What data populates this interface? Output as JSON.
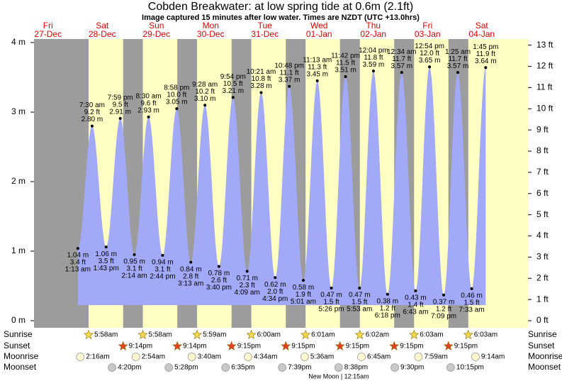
{
  "chart_data": {
    "type": "tide",
    "title": "Cobden Breakwater: at low  spring tide at 0.6m (2.1ft)",
    "subtitle": "Image captured 15 minutes after low water. Times are NZDT (UTC +13.0hrs)",
    "ylim": [
      0,
      4
    ],
    "yticks": [
      {
        "value": 0,
        "label": "0 m"
      },
      {
        "value": 1,
        "label": "1 m"
      },
      {
        "value": 2,
        "label": "2 m"
      },
      {
        "value": 3,
        "label": "3 m"
      },
      {
        "value": 4,
        "label": "4 m"
      }
    ],
    "y2lim": [
      0,
      13.123
    ],
    "y2ticks": [
      {
        "value": 0,
        "label": "0 ft"
      },
      {
        "value": 1,
        "label": "1 ft"
      },
      {
        "value": 2,
        "label": "2 ft"
      },
      {
        "value": 3,
        "label": "3 ft"
      },
      {
        "value": 4,
        "label": "4 ft"
      },
      {
        "value": 5,
        "label": "5 ft"
      },
      {
        "value": 6,
        "label": "6 ft"
      },
      {
        "value": 7,
        "label": "7 ft"
      },
      {
        "value": 8,
        "label": "8 ft"
      },
      {
        "value": 9,
        "label": "9 ft"
      },
      {
        "value": 10,
        "label": "10 ft"
      },
      {
        "value": 11,
        "label": "11 ft"
      },
      {
        "value": 12,
        "label": "12 ft"
      },
      {
        "value": 13,
        "label": "13 ft"
      }
    ],
    "colors": {
      "tide": "#a2a9f6",
      "day": "#ffffc4",
      "night": "#9c9c9c",
      "header": "#e00000"
    },
    "row_labels": {
      "sunrise": "Sunrise",
      "sunset": "Sunset",
      "moonrise": "Moonrise",
      "moonset": "Moonset"
    },
    "moon_note": "New Moon | 12:15am",
    "days": [
      {
        "weekday": "Fri",
        "date": "27-Dec"
      },
      {
        "weekday": "Sat",
        "date": "28-Dec",
        "sunrise": "5:58am",
        "sunset": "9:14pm",
        "moonrise": "2:16am",
        "moonset": "4:20pm",
        "tides": [
          {
            "time": "1:13 am",
            "value": 1.04,
            "value_label": "1.04 m",
            "ft_label": "3.4 ft"
          },
          {
            "time": "7:30 am",
            "value": 2.8,
            "value_label": "2.80 m",
            "ft_label": "9.2 ft"
          },
          {
            "time": "1:43 pm",
            "value": 1.06,
            "value_label": "1.06 m",
            "ft_label": "3.5 ft"
          },
          {
            "time": "7:59 pm",
            "value": 2.91,
            "value_label": "2.91 m",
            "ft_label": "9.5 ft"
          }
        ]
      },
      {
        "weekday": "Sun",
        "date": "29-Dec",
        "sunrise": "5:58am",
        "sunset": "9:14pm",
        "moonrise": "2:54am",
        "moonset": "5:28pm",
        "tides": [
          {
            "time": "2:14 am",
            "value": 0.95,
            "value_label": "0.95 m",
            "ft_label": "3.1 ft"
          },
          {
            "time": "8:30 am",
            "value": 2.93,
            "value_label": "2.93 m",
            "ft_label": "9.6 ft"
          },
          {
            "time": "2:44 pm",
            "value": 0.94,
            "value_label": "0.94 m",
            "ft_label": "3.1 ft"
          },
          {
            "time": "8:58 pm",
            "value": 3.05,
            "value_label": "3.05 m",
            "ft_label": "10.0 ft"
          }
        ]
      },
      {
        "weekday": "Mon",
        "date": "30-Dec",
        "sunrise": "5:59am",
        "sunset": "9:15pm",
        "moonrise": "3:40am",
        "moonset": "6:35pm",
        "tides": [
          {
            "time": "3:13 am",
            "value": 0.84,
            "value_label": "0.84 m",
            "ft_label": "2.8 ft"
          },
          {
            "time": "9:28 am",
            "value": 3.1,
            "value_label": "3.10 m",
            "ft_label": "10.2 ft"
          },
          {
            "time": "3:40 pm",
            "value": 0.78,
            "value_label": "0.78 m",
            "ft_label": "2.6 ft"
          },
          {
            "time": "9:54 pm",
            "value": 3.21,
            "value_label": "3.21 m",
            "ft_label": "10.5 ft"
          }
        ]
      },
      {
        "weekday": "Tue",
        "date": "31-Dec",
        "sunrise": "6:00am",
        "sunset": "9:15pm",
        "moonrise": "4:34am",
        "moonset": "7:39pm",
        "tides": [
          {
            "time": "4:09 am",
            "value": 0.71,
            "value_label": "0.71 m",
            "ft_label": "2.3 ft"
          },
          {
            "time": "10:21 am",
            "value": 3.28,
            "value_label": "3.28 m",
            "ft_label": "10.8 ft"
          },
          {
            "time": "4:34 pm",
            "value": 0.62,
            "value_label": "0.62 m",
            "ft_label": "2.0 ft"
          },
          {
            "time": "10:48 pm",
            "value": 3.37,
            "value_label": "3.37 m",
            "ft_label": "11.1 ft"
          }
        ]
      },
      {
        "weekday": "Wed",
        "date": "01-Jan",
        "sunrise": "6:01am",
        "sunset": "9:15pm",
        "moonrise": "5:36am",
        "moonset": "8:38pm",
        "tides": [
          {
            "time": "5:01 am",
            "value": 0.58,
            "value_label": "0.58 m",
            "ft_label": "1.9 ft"
          },
          {
            "time": "11:13 am",
            "value": 3.45,
            "value_label": "3.45 m",
            "ft_label": "11.3 ft"
          },
          {
            "time": "5:26 pm",
            "value": 0.47,
            "value_label": "0.47 m",
            "ft_label": "1.5 ft"
          },
          {
            "time": "11:42 pm",
            "value": 3.51,
            "value_label": "3.51 m",
            "ft_label": "11.5 ft"
          }
        ]
      },
      {
        "weekday": "Thu",
        "date": "02-Jan",
        "sunrise": "6:02am",
        "sunset": "9:15pm",
        "moonrise": "6:45am",
        "moonset": "9:30pm",
        "tides": [
          {
            "time": "5:53 am",
            "value": 0.47,
            "value_label": "0.47 m",
            "ft_label": "1.5 ft"
          },
          {
            "time": "12:04 pm",
            "value": 3.59,
            "value_label": "3.59 m",
            "ft_label": "11.8 ft"
          },
          {
            "time": "6:18 pm",
            "value": 0.38,
            "value_label": "0.38 m",
            "ft_label": "1.2 ft"
          }
        ]
      },
      {
        "weekday": "Fri",
        "date": "03-Jan",
        "sunrise": "6:03am",
        "sunset": "9:15pm",
        "moonrise": "7:59am",
        "moonset": "10:15pm",
        "tides": [
          {
            "time": "12:34 am",
            "value": 3.57,
            "value_label": "3.57 m",
            "ft_label": "11.7 ft"
          },
          {
            "time": "6:43 am",
            "value": 0.43,
            "value_label": "0.43 m",
            "ft_label": "1.4 ft"
          },
          {
            "time": "12:54 pm",
            "value": 3.65,
            "value_label": "3.65 m",
            "ft_label": "12.0 ft"
          },
          {
            "time": "7:09 pm",
            "value": 0.37,
            "value_label": "0.37 m",
            "ft_label": "1.2 ft"
          }
        ]
      },
      {
        "weekday": "Sat",
        "date": "04-Jan",
        "sunrise": "6:03am",
        "moonrise": "9:14am",
        "tides": [
          {
            "time": "1:25 am",
            "value": 3.57,
            "value_label": "3.57 m",
            "ft_label": "11.7 ft"
          },
          {
            "time": "7:33 am",
            "value": 0.46,
            "value_label": "0.46 m",
            "ft_label": "1.5 ft"
          },
          {
            "time": "1:45 pm",
            "value": 3.64,
            "value_label": "3.64 m",
            "ft_label": "11.9 ft"
          }
        ]
      }
    ]
  }
}
